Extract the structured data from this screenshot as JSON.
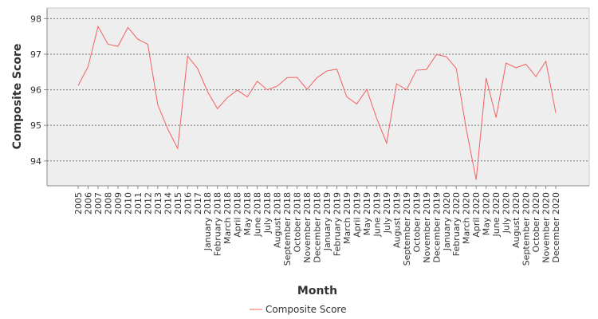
{
  "chart_data": {
    "type": "line",
    "xlabel": "Month",
    "ylabel": "Composite Score",
    "ylim": [
      93.3,
      98.3
    ],
    "yticks": [
      94,
      95,
      96,
      97,
      98
    ],
    "grid": true,
    "legend_position": "bottom-center",
    "categories": [
      "2005",
      "2006",
      "2007",
      "2008",
      "2009",
      "2010",
      "2011",
      "2012",
      "2013",
      "2014",
      "2015",
      "2016",
      "2017",
      "January 2018",
      "February 2018",
      "March 2018",
      "April 2018",
      "May 2018",
      "June 2018",
      "July 2018",
      "August 2018",
      "September 2018",
      "October 2018",
      "November 2018",
      "December 2018",
      "January 2019",
      "February 2019",
      "March 2019",
      "April 2019",
      "May 2019",
      "June 2019",
      "July 2019",
      "August 2019",
      "September 2019",
      "October 2019",
      "November 2019",
      "December 2019",
      "January 2020",
      "February 2020",
      "March 2020",
      "April 2020",
      "May 2020",
      "June 2020",
      "July 2020",
      "August 2020",
      "September 2020",
      "October 2020",
      "November 2020",
      "December 2020"
    ],
    "series": [
      {
        "name": "Composite Score",
        "color": "#f26060",
        "values": [
          96.12,
          96.65,
          97.78,
          97.28,
          97.22,
          97.75,
          97.42,
          97.28,
          95.58,
          94.9,
          94.35,
          96.95,
          96.6,
          95.95,
          95.47,
          95.78,
          95.99,
          95.8,
          96.24,
          96.0,
          96.1,
          96.34,
          96.35,
          96.01,
          96.34,
          96.53,
          96.58,
          95.8,
          95.6,
          96.01,
          95.2,
          94.5,
          96.17,
          96.0,
          96.55,
          96.57,
          96.99,
          96.93,
          96.6,
          94.9,
          93.47,
          96.33,
          95.22,
          96.75,
          96.62,
          96.72,
          96.37,
          96.8,
          95.35
        ]
      }
    ]
  }
}
